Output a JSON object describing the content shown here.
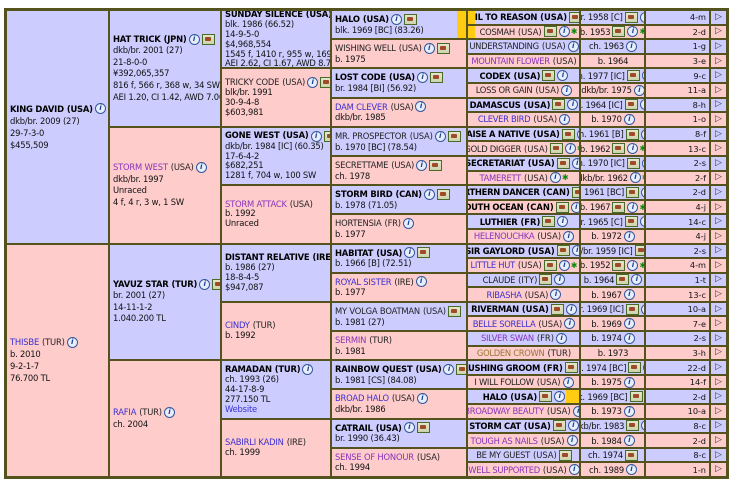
{
  "colors": {
    "male_cell": "#ccccff",
    "female_cell": "#ffcccc",
    "border": "#54521d",
    "duplicate_highlight": "#ffcc11",
    "link": "#3a2fd0",
    "link_visited": "#8833bb",
    "link_olive": "#997733"
  },
  "ui": {
    "expand_arrow": "▷",
    "info_glyph": "i",
    "star_glyph": "*"
  },
  "generations": {
    "gen1": [
      {
        "name": "KING DAVID",
        "country": "(USA)",
        "style": "bold",
        "icons": [
          "info",
          "photo"
        ],
        "lines": [
          "dkb/br. 2009 (27)",
          "29-7-3-0",
          "$455,509"
        ],
        "sex": "m"
      },
      {
        "name": "THISBE",
        "country": "(TUR)",
        "style": "link",
        "icons": [
          "info"
        ],
        "lines": [
          "b. 2010",
          "9-2-1-7",
          "76.700 TL"
        ],
        "sex": "f"
      }
    ],
    "gen2": [
      {
        "name": "HAT TRICK",
        "country": "(JPN)",
        "style": "bold",
        "icons": [
          "info",
          "photo"
        ],
        "lines": [
          "dkb/br. 2001 (27)",
          "21-8-0-0",
          "¥392,065,357",
          "816 f, 566 r, 368 w, 34 SW",
          "AEI 1.20, CI 1.42, AWD 7.06"
        ],
        "sex": "m"
      },
      {
        "name": "STORM WEST",
        "country": "(USA)",
        "style": "link2",
        "icons": [
          "info"
        ],
        "lines": [
          "dkb/br. 1997",
          "Unraced",
          "4 f, 4 r, 3 w, 1 SW"
        ],
        "sex": "f"
      },
      {
        "name": "YAVUZ STAR",
        "country": "(TUR)",
        "style": "bold",
        "icons": [
          "info",
          "photo"
        ],
        "lines": [
          "br. 2001 (27)",
          "14-11-1-2",
          "1.040.200 TL"
        ],
        "sex": "m"
      },
      {
        "name": "RAFIA",
        "country": "(TUR)",
        "style": "link",
        "icons": [
          "info"
        ],
        "lines": [
          "ch. 2004"
        ],
        "sex": "f"
      }
    ],
    "gen3": [
      {
        "name": "SUNDAY SILENCE",
        "country": "(USA)",
        "style": "bold",
        "icons": [
          "info",
          "photo"
        ],
        "lines": [
          "blk. 1986 (66.52)",
          "14-9-5-0",
          "$4,968,554",
          "1545 f, 1410 r, 955 w, 169 SW",
          "AEI 2.62, CI 1.67, AWD 8.72"
        ],
        "sex": "m"
      },
      {
        "name": "TRICKY CODE",
        "country": "(USA)",
        "style": "plain",
        "icons": [
          "info",
          "photo"
        ],
        "lines": [
          "blk/br. 1991",
          "30-9-4-8",
          "$603,981"
        ],
        "sex": "f"
      },
      {
        "name": "GONE WEST",
        "country": "(USA)",
        "style": "bold",
        "icons": [
          "info",
          "photo"
        ],
        "lines": [
          "dkb/br. 1984 [IC] (60.35)",
          "17-6-4-2",
          "$682,251",
          "1281 f, 704 w, 100 SW"
        ],
        "sex": "m"
      },
      {
        "name": "STORM ATTACK",
        "country": "(USA)",
        "style": "link2",
        "icons": [],
        "lines": [
          "b. 1992",
          "Unraced"
        ],
        "sex": "f"
      },
      {
        "name": "DISTANT RELATIVE",
        "country": "(IRE)",
        "style": "bold",
        "icons": [
          "info",
          "photo"
        ],
        "lines": [
          "b. 1986 (27)",
          "18-8-4-5",
          "$947,087"
        ],
        "sex": "m"
      },
      {
        "name": "CINDY",
        "country": "(TUR)",
        "style": "link",
        "icons": [],
        "lines": [
          "b. 1992"
        ],
        "sex": "f"
      },
      {
        "name": "RAMADAN",
        "country": "(TUR)",
        "style": "bold",
        "icons": [
          "info"
        ],
        "lines": [
          "ch. 1993 (26)",
          "44-17-8-9",
          "277.150 TL"
        ],
        "link_line": "Website",
        "sex": "m"
      },
      {
        "name": "SABIRLI KADIN",
        "country": "(IRE)",
        "style": "link",
        "icons": [],
        "lines": [
          "ch. 1999"
        ],
        "sex": "f"
      }
    ],
    "gen4": [
      {
        "name": "HALO",
        "country": "(USA)",
        "style": "bold",
        "icons": [
          "info",
          "photo"
        ],
        "lines": [
          "blk. 1969 [BC] (83.26)"
        ],
        "sex": "m",
        "hl": "right"
      },
      {
        "name": "WISHING WELL",
        "country": "(USA)",
        "style": "plain",
        "icons": [
          "info",
          "photo"
        ],
        "lines": [
          "b. 1975"
        ],
        "sex": "f"
      },
      {
        "name": "LOST CODE",
        "country": "(USA)",
        "style": "bold",
        "icons": [
          "info",
          "photo"
        ],
        "lines": [
          "br. 1984 [BI] (56.92)"
        ],
        "sex": "m"
      },
      {
        "name": "DAM CLEVER",
        "country": "(USA)",
        "style": "link",
        "icons": [
          "info"
        ],
        "lines": [
          "dkb/br. 1985"
        ],
        "sex": "f"
      },
      {
        "name": "MR. PROSPECTOR",
        "country": "(USA)",
        "style": "plain",
        "icons": [
          "info",
          "photo"
        ],
        "lines": [
          "b. 1970 [BC] (78.54)"
        ],
        "sex": "m"
      },
      {
        "name": "SECRETTAME",
        "country": "(USA)",
        "style": "plain",
        "icons": [
          "info",
          "photo"
        ],
        "lines": [
          "ch. 1978"
        ],
        "sex": "f"
      },
      {
        "name": "STORM BIRD",
        "country": "(CAN)",
        "style": "bold",
        "icons": [
          "info",
          "photo"
        ],
        "lines": [
          "b. 1978 (71.05)"
        ],
        "sex": "m"
      },
      {
        "name": "HORTENSIA",
        "country": "(FR)",
        "style": "plain",
        "icons": [
          "info"
        ],
        "lines": [
          "b. 1977"
        ],
        "sex": "f"
      },
      {
        "name": "HABITAT",
        "country": "(USA)",
        "style": "bold",
        "icons": [
          "info",
          "photo"
        ],
        "lines": [
          "b. 1966 [B] (72.51)"
        ],
        "sex": "m"
      },
      {
        "name": "ROYAL SISTER",
        "country": "(IRE)",
        "style": "link",
        "icons": [
          "info"
        ],
        "lines": [
          "b. 1977"
        ],
        "sex": "f"
      },
      {
        "name": "MY VOLGA BOATMAN",
        "country": "(USA)",
        "style": "plain",
        "icons": [
          "photo"
        ],
        "lines": [
          "b. 1981 (27)"
        ],
        "sex": "m"
      },
      {
        "name": "SERMIN",
        "country": "(TUR)",
        "style": "link2",
        "icons": [],
        "lines": [
          "b. 1981"
        ],
        "sex": "f"
      },
      {
        "name": "RAINBOW QUEST",
        "country": "(USA)",
        "style": "bold",
        "icons": [
          "info",
          "photo"
        ],
        "lines": [
          "b. 1981 [CS] (84.08)"
        ],
        "sex": "m"
      },
      {
        "name": "BROAD HALO",
        "country": "(USA)",
        "style": "link",
        "icons": [
          "info"
        ],
        "lines": [
          "dkb/br. 1986"
        ],
        "sex": "f"
      },
      {
        "name": "CATRAIL",
        "country": "(USA)",
        "style": "bold",
        "icons": [
          "info",
          "photo"
        ],
        "lines": [
          "br. 1990 (36.43)"
        ],
        "sex": "m"
      },
      {
        "name": "SENSE OF HONOUR",
        "country": "(USA)",
        "style": "link2",
        "icons": [],
        "lines": [
          "ch. 1994"
        ],
        "sex": "f"
      }
    ],
    "gen5": [
      {
        "name": "HAIL TO REASON",
        "country": "(USA)",
        "style": "bold",
        "detail": "br. 1958 [C]",
        "icons": [
          "photo",
          "info"
        ],
        "family": "4-m",
        "sex": "m",
        "hl": "left"
      },
      {
        "name": "COSMAH",
        "country": "(USA)",
        "style": "plain",
        "detail": "b. 1953",
        "icons": [
          "photo",
          "info",
          "star"
        ],
        "family": "2-d",
        "sex": "f",
        "hl": "left"
      },
      {
        "name": "UNDERSTANDING",
        "country": "(USA)",
        "style": "plain",
        "detail": "ch. 1963",
        "icons": [
          "info"
        ],
        "family": "1-g",
        "sex": "m"
      },
      {
        "name": "MOUNTAIN FLOWER",
        "country": "(USA)",
        "style": "link2",
        "detail": "b. 1964",
        "icons": [],
        "family": "3-e",
        "sex": "f"
      },
      {
        "name": "CODEX",
        "country": "(USA)",
        "style": "bold",
        "detail": "ch. 1977 [IC]",
        "icons": [
          "photo",
          "info"
        ],
        "family": "9-c",
        "sex": "m"
      },
      {
        "name": "LOSS OR GAIN",
        "country": "(USA)",
        "style": "plain",
        "detail": "dkb/br. 1975",
        "icons": [
          "info"
        ],
        "family": "11-a",
        "sex": "f"
      },
      {
        "name": "DAMASCUS",
        "country": "(USA)",
        "style": "bold",
        "detail": "b. 1964 [IC]",
        "icons": [
          "photo",
          "info"
        ],
        "family": "8-h",
        "sex": "m"
      },
      {
        "name": "CLEVER BIRD",
        "country": "(USA)",
        "style": "link",
        "detail": "b. 1970",
        "icons": [
          "info"
        ],
        "family": "1-o",
        "sex": "f"
      },
      {
        "name": "RAISE A NATIVE",
        "country": "(USA)",
        "style": "bold",
        "detail": "ch. 1961 [B]",
        "icons": [
          "photo",
          "info"
        ],
        "family": "8-f",
        "sex": "m"
      },
      {
        "name": "GOLD DIGGER",
        "country": "(USA)",
        "style": "plain",
        "detail": "b. 1962",
        "icons": [
          "photo",
          "info",
          "star"
        ],
        "family": "13-c",
        "sex": "f"
      },
      {
        "name": "SECRETARIAT",
        "country": "(USA)",
        "style": "bold",
        "detail": "ch. 1970 [IC]",
        "icons": [
          "photo",
          "info"
        ],
        "family": "2-s",
        "sex": "m"
      },
      {
        "name": "TAMERETT",
        "country": "(USA)",
        "style": "link2",
        "detail": "dkb/br. 1962",
        "icons": [
          "info",
          "star"
        ],
        "family": "2-f",
        "sex": "f"
      },
      {
        "name": "NORTHERN DANCER",
        "country": "(CAN)",
        "style": "bold",
        "detail": "b. 1961 [BC]",
        "icons": [
          "photo",
          "info"
        ],
        "family": "2-d",
        "sex": "m"
      },
      {
        "name": "SOUTH OCEAN",
        "country": "(CAN)",
        "style": "bold",
        "detail": "b. 1967",
        "icons": [
          "photo",
          "info",
          "star"
        ],
        "family": "4-j",
        "sex": "f"
      },
      {
        "name": "LUTHIER",
        "country": "(FR)",
        "style": "bold",
        "detail": "br. 1965 [C]",
        "icons": [
          "photo",
          "info"
        ],
        "family": "14-c",
        "sex": "m"
      },
      {
        "name": "HELENOUCHKA",
        "country": "(USA)",
        "style": "link2",
        "detail": "b. 1972",
        "icons": [
          "info"
        ],
        "family": "4-j",
        "sex": "f"
      },
      {
        "name": "SIR GAYLORD",
        "country": "(USA)",
        "style": "bold",
        "detail": "dkb/br. 1959 [IC]",
        "icons": [
          "photo",
          "info"
        ],
        "family": "2-s",
        "sex": "m"
      },
      {
        "name": "LITTLE HUT",
        "country": "(USA)",
        "style": "link",
        "detail": "b. 1952",
        "icons": [
          "photo",
          "info",
          "star"
        ],
        "family": "4-m",
        "sex": "f"
      },
      {
        "name": "CLAUDE",
        "country": "(ITY)",
        "style": "plain",
        "detail": "b. 1964",
        "icons": [
          "photo",
          "info"
        ],
        "family": "1-t",
        "sex": "m"
      },
      {
        "name": "RIBASHA",
        "country": "(USA)",
        "style": "link",
        "detail": "b. 1967",
        "icons": [
          "info"
        ],
        "family": "13-c",
        "sex": "f"
      },
      {
        "name": "RIVERMAN",
        "country": "(USA)",
        "style": "bold",
        "detail": "br. 1969 [IC]",
        "icons": [
          "photo",
          "info"
        ],
        "family": "10-a",
        "sex": "m"
      },
      {
        "name": "BELLE SORELLA",
        "country": "(USA)",
        "style": "link",
        "detail": "b. 1969",
        "icons": [
          "info"
        ],
        "family": "7-e",
        "sex": "f"
      },
      {
        "name": "SILVER SWAN",
        "country": "(FR)",
        "style": "link2",
        "detail": "b. 1974",
        "icons": [
          "info"
        ],
        "family": "2-s",
        "sex": "m"
      },
      {
        "name": "GOLDEN CROWN",
        "country": "(TUR)",
        "style": "link3",
        "detail": "b. 1973",
        "icons": [],
        "family": "3-h",
        "sex": "f"
      },
      {
        "name": "BLUSHING GROOM",
        "country": "(FR)",
        "style": "bold",
        "detail": "ch. 1974 [BC]",
        "icons": [
          "photo",
          "info"
        ],
        "family": "22-d",
        "sex": "m"
      },
      {
        "name": "I WILL FOLLOW",
        "country": "(USA)",
        "style": "plain",
        "detail": "b. 1975",
        "icons": [
          "info"
        ],
        "family": "14-f",
        "sex": "f"
      },
      {
        "name": "HALO",
        "country": "(USA)",
        "style": "bold",
        "detail": "blk. 1969 [BC]",
        "icons": [
          "photo",
          "info"
        ],
        "family": "2-d",
        "sex": "m",
        "hl": "right"
      },
      {
        "name": "BROADWAY BEAUTY",
        "country": "(USA)",
        "style": "link2",
        "detail": "b. 1973",
        "icons": [
          "info"
        ],
        "family": "10-a",
        "sex": "f"
      },
      {
        "name": "STORM CAT",
        "country": "(USA)",
        "style": "bold",
        "detail": "dkb/br. 1983",
        "icons": [
          "photo",
          "info"
        ],
        "family": "8-c",
        "sex": "m"
      },
      {
        "name": "TOUGH AS NAILS",
        "country": "(USA)",
        "style": "link2",
        "detail": "b. 1984",
        "icons": [
          "info"
        ],
        "family": "2-d",
        "sex": "f"
      },
      {
        "name": "BE MY GUEST",
        "country": "(USA)",
        "style": "plain",
        "detail": "ch. 1974",
        "icons": [
          "photo"
        ],
        "family": "8-c",
        "sex": "m"
      },
      {
        "name": "WELL SUPPORTED",
        "country": "(USA)",
        "style": "link2",
        "detail": "ch. 1989",
        "icons": [
          "info"
        ],
        "family": "1-n",
        "sex": "f"
      }
    ]
  }
}
